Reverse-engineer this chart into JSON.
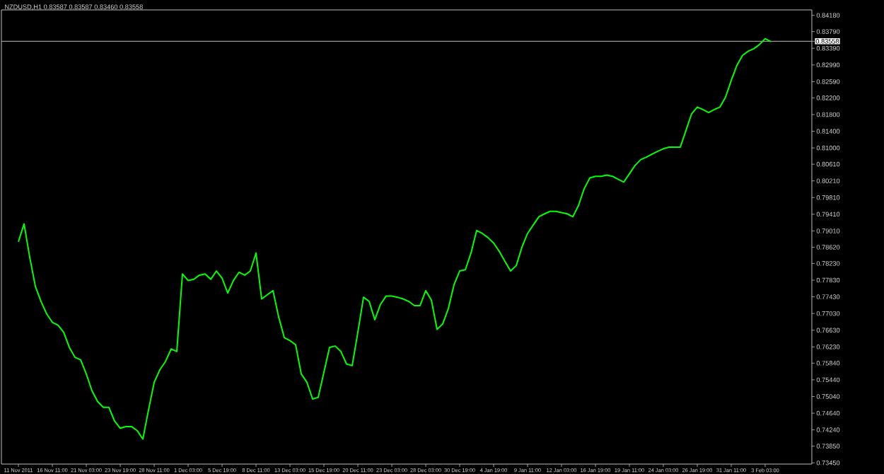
{
  "chart_data": {
    "type": "line",
    "title": "NZDUSD,H1 0.83587 0.83587 0.83460 0.83558",
    "categories": [
      "11 Nov 2011",
      null,
      null,
      null,
      null,
      null,
      "16 Nov 11:00",
      null,
      null,
      null,
      null,
      null,
      "21 Nov 03:00",
      null,
      null,
      null,
      null,
      null,
      "23 Nov 19:00",
      null,
      null,
      null,
      null,
      null,
      "28 Nov 11:00",
      null,
      null,
      null,
      null,
      null,
      "1 Dec 03:00",
      null,
      null,
      null,
      null,
      null,
      "5 Dec 19:00",
      null,
      null,
      null,
      null,
      null,
      "8 Dec 11:00",
      null,
      null,
      null,
      null,
      null,
      "13 Dec 03:00",
      null,
      null,
      null,
      null,
      null,
      "15 Dec 19:00",
      null,
      null,
      null,
      null,
      null,
      "20 Dec 11:00",
      null,
      null,
      null,
      null,
      null,
      "23 Dec 03:00",
      null,
      null,
      null,
      null,
      null,
      "28 Dec 03:00",
      null,
      null,
      null,
      null,
      null,
      "30 Dec 19:00",
      null,
      null,
      null,
      null,
      null,
      "4 Jan 19:00",
      null,
      null,
      null,
      null,
      null,
      "9 Jan 11:00",
      null,
      null,
      null,
      null,
      null,
      "12 Jan 03:00",
      null,
      null,
      null,
      null,
      null,
      "16 Jan 19:00",
      null,
      null,
      null,
      null,
      null,
      "19 Jan 11:00",
      null,
      null,
      null,
      null,
      null,
      "24 Jan 03:00",
      null,
      null,
      null,
      null,
      null,
      "26 Jan 19:00",
      null,
      null,
      null,
      null,
      null,
      "31 Jan 11:00",
      null,
      null,
      null,
      null,
      null,
      "3 Feb 03:00",
      null
    ],
    "series": [
      {
        "color": "#00ff00",
        "values": [
          0.7875,
          0.7918,
          0.7838,
          0.7768,
          0.7732,
          0.7702,
          0.7682,
          0.7675,
          0.7658,
          0.7622,
          0.7598,
          0.7592,
          0.7558,
          0.7518,
          0.7492,
          0.7478,
          0.7478,
          0.7445,
          0.7428,
          0.7432,
          0.7432,
          0.7422,
          0.7402,
          0.7472,
          0.7538,
          0.7568,
          0.7588,
          0.7618,
          0.7612,
          0.7798,
          0.7782,
          0.7785,
          0.7795,
          0.7798,
          0.7785,
          0.7805,
          0.7788,
          0.7752,
          0.7782,
          0.7802,
          0.7795,
          0.7805,
          0.7848,
          0.7738,
          0.7748,
          0.7758,
          0.7695,
          0.7645,
          0.7638,
          0.7628,
          0.7558,
          0.7538,
          0.7498,
          0.7502,
          0.7562,
          0.7622,
          0.7625,
          0.7612,
          0.7582,
          0.7578,
          0.7658,
          0.7742,
          0.7732,
          0.7688,
          0.7725,
          0.7745,
          0.7745,
          0.7742,
          0.7738,
          0.7732,
          0.7722,
          0.7722,
          0.7758,
          0.7735,
          0.7665,
          0.7678,
          0.7715,
          0.7772,
          0.7805,
          0.7808,
          0.7848,
          0.7902,
          0.7895,
          0.7885,
          0.7872,
          0.7852,
          0.7828,
          0.7805,
          0.7818,
          0.7862,
          0.7895,
          0.7915,
          0.7935,
          0.7942,
          0.7948,
          0.7948,
          0.7945,
          0.7942,
          0.7935,
          0.7962,
          0.8002,
          0.8028,
          0.8032,
          0.8032,
          0.8035,
          0.8032,
          0.8025,
          0.8018,
          0.8038,
          0.8058,
          0.8072,
          0.8078,
          0.8085,
          0.8092,
          0.8098,
          0.8102,
          0.8102,
          0.8102,
          0.8142,
          0.8182,
          0.8198,
          0.8192,
          0.8185,
          0.8192,
          0.8198,
          0.8222,
          0.8262,
          0.8298,
          0.8322,
          0.8332,
          0.8338,
          0.8348,
          0.8362,
          0.8355
        ]
      }
    ],
    "ylim": [
      0.7342,
      0.8431
    ],
    "yticks": [
      {
        "value": 0.8418,
        "label": "0.84180"
      },
      {
        "value": 0.8379,
        "label": "0.83790"
      },
      {
        "value": 0.8339,
        "label": "0.83390"
      },
      {
        "value": 0.8299,
        "label": "0.82990"
      },
      {
        "value": 0.8259,
        "label": "0.82590"
      },
      {
        "value": 0.822,
        "label": "0.82200"
      },
      {
        "value": 0.818,
        "label": "0.81800"
      },
      {
        "value": 0.814,
        "label": "0.81400"
      },
      {
        "value": 0.81,
        "label": "0.81000"
      },
      {
        "value": 0.8061,
        "label": "0.80610"
      },
      {
        "value": 0.8021,
        "label": "0.80210"
      },
      {
        "value": 0.7981,
        "label": "0.79810"
      },
      {
        "value": 0.7941,
        "label": "0.79410"
      },
      {
        "value": 0.7901,
        "label": "0.79010"
      },
      {
        "value": 0.7862,
        "label": "0.78620"
      },
      {
        "value": 0.7823,
        "label": "0.78230"
      },
      {
        "value": 0.7783,
        "label": "0.77830"
      },
      {
        "value": 0.7743,
        "label": "0.77430"
      },
      {
        "value": 0.7703,
        "label": "0.77030"
      },
      {
        "value": 0.7663,
        "label": "0.76630"
      },
      {
        "value": 0.7623,
        "label": "0.76230"
      },
      {
        "value": 0.7584,
        "label": "0.75840"
      },
      {
        "value": 0.7544,
        "label": "0.75440"
      },
      {
        "value": 0.7504,
        "label": "0.75040"
      },
      {
        "value": 0.7464,
        "label": "0.74640"
      },
      {
        "value": 0.7424,
        "label": "0.74240"
      },
      {
        "value": 0.7385,
        "label": "0.73850"
      },
      {
        "value": 0.7345,
        "label": "0.73450"
      }
    ],
    "ref_lines": [
      {
        "axis": "y",
        "value": 0.83558,
        "label": "0.83558",
        "color": "#c0c0c0"
      }
    ]
  }
}
